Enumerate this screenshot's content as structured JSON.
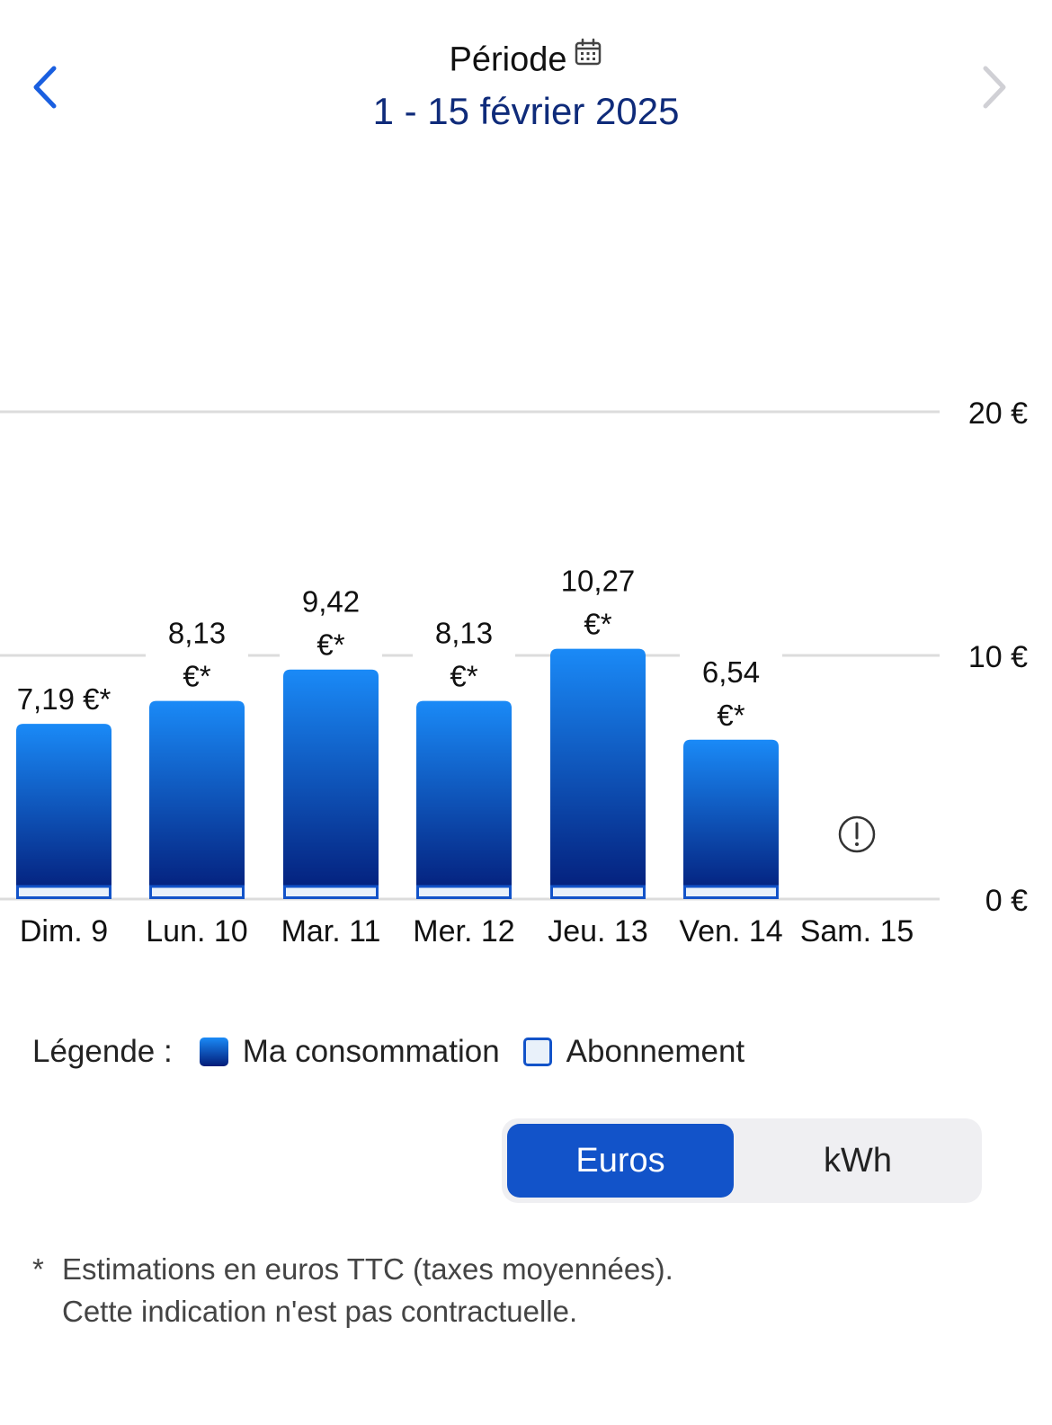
{
  "header": {
    "label": "Période",
    "date": "1 - 15 février 2025",
    "icons": {
      "prev": "chevron-left-icon",
      "next": "chevron-right-icon",
      "calendar": "calendar-icon"
    }
  },
  "colors": {
    "accent": "#1253c9",
    "bar_top": "#1a8af7",
    "bar_bottom": "#031c78",
    "nav_active": "#1a5fe0",
    "nav_disabled": "#d0d0d5"
  },
  "chart_data": {
    "type": "bar",
    "categories": [
      "Dim. 9",
      "Lun. 10",
      "Mar. 11",
      "Mer. 12",
      "Jeu. 13",
      "Ven. 14",
      "Sam. 15"
    ],
    "series": [
      {
        "name": "Ma consommation",
        "values": [
          7.19,
          8.13,
          9.42,
          8.13,
          10.27,
          6.54,
          null
        ]
      }
    ],
    "value_labels": [
      [
        "7,19 €*"
      ],
      [
        "8,13",
        "€*"
      ],
      [
        "9,42",
        "€*"
      ],
      [
        "8,13",
        "€*"
      ],
      [
        "10,27",
        "€*"
      ],
      [
        "6,54",
        "€*"
      ],
      []
    ],
    "missing_data_icon": "exclamation-circle-icon",
    "y_ticks": [
      {
        "value": 20,
        "label": "20 €"
      },
      {
        "value": 10,
        "label": "10 €"
      },
      {
        "value": 0,
        "label": "0 €"
      }
    ],
    "ylim": [
      0,
      20
    ],
    "grid": true
  },
  "legend": {
    "title": "Légende :",
    "items": [
      {
        "label": "Ma consommation"
      },
      {
        "label": "Abonnement"
      }
    ]
  },
  "toggle": {
    "options": [
      "Euros",
      "kWh"
    ],
    "selected": "Euros"
  },
  "footnote": {
    "star": "*",
    "line1": "Estimations en euros TTC (taxes moyennées).",
    "line2": "Cette indication n'est pas contractuelle."
  }
}
